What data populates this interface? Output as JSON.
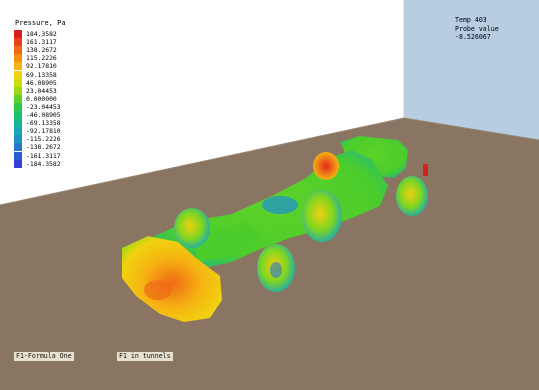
{
  "legend": {
    "title": "Pressure, Pa",
    "entries": [
      {
        "value": "184.3582",
        "color": "#d81f1f"
      },
      {
        "value": "161.3117",
        "color": "#e54319"
      },
      {
        "value": "138.2672",
        "color": "#ef6a17"
      },
      {
        "value": "115.2226",
        "color": "#f48f14"
      },
      {
        "value": "92.17810",
        "color": "#f6b312"
      },
      {
        "value": "69.13358",
        "color": "#f0d20f"
      },
      {
        "value": "46.08905",
        "color": "#cbde0e"
      },
      {
        "value": "23.04453",
        "color": "#9bd918"
      },
      {
        "value": "0.000000",
        "color": "#5ed228"
      },
      {
        "value": "-23.04453",
        "color": "#2fca45"
      },
      {
        "value": "-46.08905",
        "color": "#1cc06e"
      },
      {
        "value": "-69.13358",
        "color": "#18b596"
      },
      {
        "value": "-92.17810",
        "color": "#1aa8b6"
      },
      {
        "value": "-115.2226",
        "color": "#1f93c8"
      },
      {
        "value": "-138.2672",
        "color": "#2378cf"
      },
      {
        "value": "-161.3117",
        "color": "#2a5dd2"
      },
      {
        "value": "-184.3582",
        "color": "#3340d4"
      }
    ]
  },
  "probe": {
    "line1": "Temp 403",
    "line2": "Probe value",
    "line3": "-8.526067"
  },
  "captions": {
    "left": "F1-Formula One",
    "right": "F1 in tunnels"
  },
  "colors": {
    "floor": "#8a7562",
    "back_wall": "#ffffff",
    "right_wall": "#b6cde2"
  }
}
